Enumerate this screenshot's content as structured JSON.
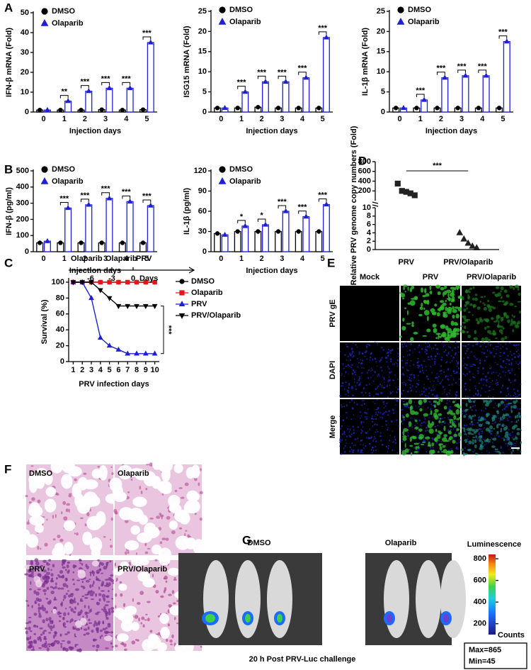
{
  "panel_labels": [
    "A",
    "B",
    "C",
    "D",
    "E",
    "F",
    "G"
  ],
  "chart_data": [
    {
      "type": "bar",
      "ylabel": "IFN-β mRNA (Fold)",
      "xlabel": "Injection days",
      "categories": [
        "0",
        "1",
        "2",
        "3",
        "4",
        "5"
      ],
      "series": [
        {
          "name": "DMSO",
          "color": "#000000",
          "marker": "circle",
          "values": [
            1,
            1,
            1,
            1.2,
            1,
            1.2
          ]
        },
        {
          "name": "Olaparib",
          "color": "#1f1fd6",
          "marker": "triangle",
          "values": [
            1,
            5.5,
            10.5,
            12,
            12,
            35
          ]
        }
      ],
      "significance": [
        null,
        "**",
        "***",
        "***",
        "***",
        "***"
      ],
      "ylim": [
        0,
        50
      ],
      "yticks": [
        0,
        10,
        20,
        30,
        40,
        50
      ]
    },
    {
      "type": "bar",
      "ylabel": "ISG15 mRNA (Fold)",
      "xlabel": "Injection days",
      "categories": [
        "0",
        "1",
        "2",
        "3",
        "4",
        "5"
      ],
      "series": [
        {
          "name": "DMSO",
          "color": "#000000",
          "marker": "circle",
          "values": [
            1,
            1,
            1.2,
            1,
            1,
            1
          ]
        },
        {
          "name": "Olaparib",
          "color": "#1f1fd6",
          "marker": "triangle",
          "values": [
            1,
            5,
            7.5,
            7.5,
            8.5,
            18.5
          ]
        }
      ],
      "significance": [
        null,
        "***",
        "***",
        "***",
        "***",
        "***"
      ],
      "ylim": [
        0,
        25
      ],
      "yticks": [
        0,
        5,
        10,
        15,
        20,
        25
      ]
    },
    {
      "type": "bar",
      "ylabel": "IL-1β mRNA (Fold)",
      "xlabel": "Injection days",
      "categories": [
        "0",
        "1",
        "2",
        "3",
        "4",
        "5"
      ],
      "series": [
        {
          "name": "DMSO",
          "color": "#000000",
          "marker": "circle",
          "values": [
            1,
            1,
            1,
            1,
            1,
            1
          ]
        },
        {
          "name": "Olaparib",
          "color": "#1f1fd6",
          "marker": "triangle",
          "values": [
            1,
            3,
            8.5,
            9,
            9,
            17.5
          ]
        }
      ],
      "significance": [
        null,
        "***",
        "***",
        "***",
        "***",
        "***"
      ],
      "ylim": [
        0,
        25
      ],
      "yticks": [
        0,
        5,
        10,
        15,
        20,
        25
      ]
    },
    {
      "type": "bar",
      "ylabel": "IFN-β  (pg/ml)",
      "xlabel": "Injection days",
      "categories": [
        "0",
        "1",
        "2",
        "3",
        "4",
        "5"
      ],
      "series": [
        {
          "name": "DMSO",
          "color": "#000000",
          "marker": "circle",
          "values": [
            55,
            55,
            55,
            55,
            55,
            55
          ]
        },
        {
          "name": "Olaparib",
          "color": "#1f1fd6",
          "marker": "triangle",
          "values": [
            65,
            270,
            290,
            330,
            310,
            285
          ]
        }
      ],
      "significance": [
        null,
        "***",
        "***",
        "***",
        "***",
        "***"
      ],
      "ylim": [
        0,
        500
      ],
      "yticks": [
        0,
        100,
        200,
        300,
        400,
        500
      ]
    },
    {
      "type": "bar",
      "ylabel": "IL-1β  (pg/ml)",
      "xlabel": "Injection days",
      "categories": [
        "0",
        "1",
        "2",
        "3",
        "4",
        "5"
      ],
      "series": [
        {
          "name": "DMSO",
          "color": "#000000",
          "marker": "circle",
          "values": [
            27,
            30,
            30,
            30,
            30,
            30
          ]
        },
        {
          "name": "Olaparib",
          "color": "#1f1fd6",
          "marker": "triangle",
          "values": [
            25,
            38,
            40,
            60,
            52,
            70
          ]
        }
      ],
      "significance": [
        null,
        "*",
        "*",
        "***",
        "***",
        "***"
      ],
      "ylim": [
        0,
        120
      ],
      "yticks": [
        0,
        30,
        60,
        90,
        120
      ]
    },
    {
      "type": "line",
      "ylabel": "Survival (%)",
      "xlabel": "PRV infection days",
      "x": [
        1,
        2,
        3,
        4,
        5,
        6,
        7,
        8,
        9,
        10
      ],
      "xlim": [
        0.5,
        10.5
      ],
      "xticks": [
        1,
        2,
        3,
        4,
        5,
        6,
        7,
        8,
        9,
        10
      ],
      "ylim": [
        0,
        100
      ],
      "yticks": [
        0,
        20,
        40,
        60,
        80,
        100
      ],
      "series": [
        {
          "name": "DMSO",
          "color": "#000000",
          "marker": "circle",
          "values": [
            100,
            100,
            100,
            100,
            100,
            100,
            100,
            100,
            100,
            100
          ]
        },
        {
          "name": "Olaparib",
          "color": "#e8141b",
          "marker": "square",
          "values": [
            100,
            100,
            100,
            100,
            100,
            100,
            100,
            100,
            100,
            100
          ]
        },
        {
          "name": "PRV",
          "color": "#1f1fd6",
          "marker": "triangle",
          "values": [
            100,
            100,
            80,
            30,
            20,
            15,
            10,
            10,
            10,
            10
          ]
        },
        {
          "name": "PRV/Olaparib",
          "color": "#000000",
          "marker": "triangle-down",
          "values": [
            100,
            100,
            100,
            90,
            80,
            70,
            70,
            70,
            70,
            70
          ]
        }
      ],
      "significance": "***",
      "timeline": {
        "treatments": [
          "Olaparib",
          "Olaparib",
          "PRV"
        ],
        "days": [
          "-6",
          "-3",
          "0"
        ],
        "unit": "Days"
      }
    },
    {
      "type": "scatter",
      "ylabel": "Relative PRV genome copy numbers (Fold)",
      "categories": [
        "PRV",
        "PRV/Olaparib"
      ],
      "markers": [
        "square",
        "triangle"
      ],
      "values": [
        [
          350,
          200,
          180,
          150,
          110
        ],
        [
          4,
          2.5,
          1.5,
          0.8,
          0.4
        ]
      ],
      "segments": [
        {
          "ylim": [
            0,
            10
          ],
          "yticks": [
            0,
            2,
            4,
            6,
            8,
            10
          ]
        },
        {
          "ylim": [
            0,
            800
          ],
          "yticks": [
            200,
            400,
            600,
            800
          ]
        }
      ],
      "significance": "***"
    }
  ],
  "panel_e": {
    "columns": [
      "Mock",
      "PRV",
      "PRV/Olaparib"
    ],
    "rows": [
      "PRV gE",
      "DAPI",
      "Merge"
    ]
  },
  "panel_f": {
    "labels": [
      "DMSO",
      "Olaparib",
      "PRV",
      "PRV/Olaparib"
    ]
  },
  "panel_g": {
    "groups": [
      "DMSO",
      "Olaparib"
    ],
    "colorbar_title": "Luminescence",
    "colorbar_unit": "Counts",
    "colorbar": {
      "ylim": [
        100,
        840
      ],
      "yticks": [
        200,
        400,
        600,
        800
      ]
    },
    "max": "Max=865",
    "min": "Min=45",
    "caption": "20 h Post PRV-Luc challenge"
  }
}
